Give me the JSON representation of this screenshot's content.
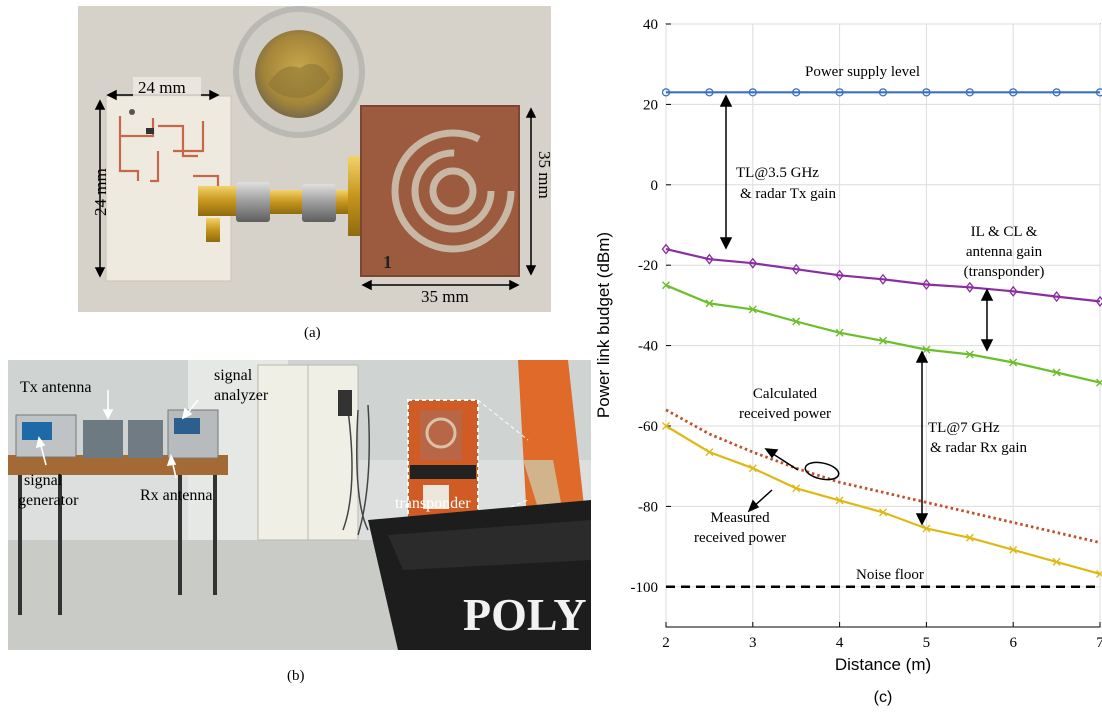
{
  "panel_a": {
    "caption": "(a)",
    "dim_top_left": "24 mm",
    "dim_side_left": "24 mm",
    "dim_side_right": "35 mm",
    "dim_bottom_right": "35 mm",
    "board_number": "1"
  },
  "panel_b": {
    "caption": "(b)",
    "labels": {
      "tx_antenna": "Tx antenna",
      "signal_analyzer_1": "signal",
      "signal_analyzer_2": "analyzer",
      "signal_generator_1": "signal",
      "signal_generator_2": "generator",
      "rx_antenna": "Rx antenna",
      "transponder": "transponder",
      "poly_sign": "POLY"
    }
  },
  "chart_data": {
    "type": "line",
    "caption": "(c)",
    "xlabel": "Distance (m)",
    "ylabel": "Power link budget (dBm)",
    "xlim": [
      2,
      7
    ],
    "ylim": [
      -110,
      40
    ],
    "xticks": [
      2,
      3,
      4,
      5,
      6,
      7
    ],
    "yticks": [
      40,
      20,
      0,
      -20,
      -40,
      -60,
      -80,
      -100
    ],
    "grid": true,
    "series": [
      {
        "key": "supply",
        "color": "#3a6fc4",
        "marker": "circle",
        "style": "solid",
        "x": [
          2,
          2.5,
          3,
          3.5,
          4,
          4.5,
          5,
          5.5,
          6,
          6.5,
          7
        ],
        "y": [
          23,
          23,
          23,
          23,
          23,
          23,
          23,
          23,
          23,
          23,
          23
        ]
      },
      {
        "key": "transponder",
        "color": "#8a2ea0",
        "marker": "diamond",
        "style": "solid",
        "x": [
          2,
          2.5,
          3,
          3.5,
          4,
          4.5,
          5,
          5.5,
          6,
          6.5,
          7
        ],
        "y": [
          -16,
          -18.5,
          -19.5,
          -21,
          -22.5,
          -23.5,
          -24.8,
          -25.5,
          -26.5,
          -27.8,
          -29
        ]
      },
      {
        "key": "green",
        "color": "#6bbf2a",
        "marker": "x",
        "style": "solid",
        "x": [
          2,
          2.5,
          3,
          3.5,
          4,
          4.5,
          5,
          5.5,
          6,
          6.5,
          7
        ],
        "y": [
          -25,
          -29.5,
          -31,
          -34,
          -36.8,
          -38.8,
          -41,
          -42.2,
          -44.2,
          -46.7,
          -49.2
        ]
      },
      {
        "key": "calculated",
        "color": "#c0502a",
        "marker": "none",
        "style": "dotted",
        "x": [
          2,
          2.5,
          3,
          3.5,
          4,
          4.5,
          5,
          5.5,
          6,
          6.5,
          7
        ],
        "y": [
          -56,
          -62,
          -66.5,
          -70.5,
          -74,
          -76.5,
          -79,
          -81.5,
          -84,
          -86.5,
          -89
        ]
      },
      {
        "key": "measured",
        "color": "#e0b814",
        "marker": "x",
        "style": "solid",
        "x": [
          2,
          2.5,
          3,
          3.5,
          4,
          4.5,
          5,
          5.5,
          6,
          6.5,
          7
        ],
        "y": [
          -60,
          -66.5,
          -70.5,
          -75.5,
          -78.5,
          -81.5,
          -85.5,
          -87.8,
          -90.8,
          -93.8,
          -96.8
        ]
      },
      {
        "key": "noise",
        "color": "#000000",
        "marker": "none",
        "style": "dashed",
        "x": [
          2,
          7
        ],
        "y": [
          -100,
          -100
        ]
      }
    ],
    "annotations": {
      "power_supply": "Power supply level",
      "tl35_1": "TL@3.5 GHz",
      "tl35_2": "& radar Tx gain",
      "il_1": "IL & CL &",
      "il_2": "antenna gain",
      "il_3": "(transponder)",
      "tl7_1": "TL@7 GHz",
      "tl7_2": "& radar Rx gain",
      "calc_1": "Calculated",
      "calc_2": "received power",
      "meas_1": "Measured",
      "meas_2": "received power",
      "noise": "Noise floor"
    }
  }
}
